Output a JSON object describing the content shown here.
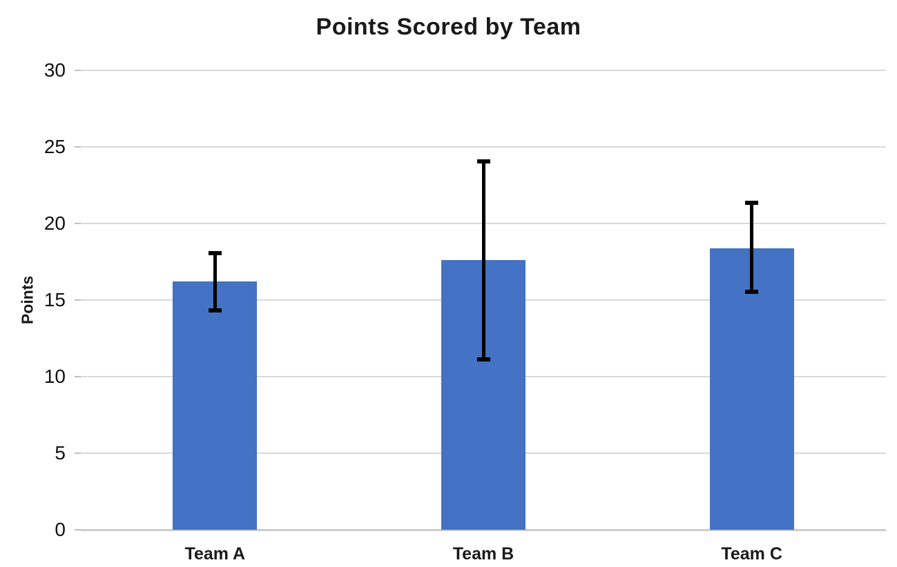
{
  "chart_data": {
    "type": "bar",
    "title": "Points Scored by Team",
    "xlabel": "",
    "ylabel": "Points",
    "categories": [
      "Team A",
      "Team B",
      "Team C"
    ],
    "values": [
      16.2,
      17.6,
      18.4
    ],
    "error_bars": [
      {
        "low": 14.2,
        "high": 18.2
      },
      {
        "low": 11.0,
        "high": 24.2
      },
      {
        "low": 15.4,
        "high": 21.5
      }
    ],
    "ylim": [
      0,
      30
    ],
    "ytick_interval": 5,
    "ytick_labels": [
      "0",
      "5",
      "10",
      "15",
      "20",
      "25",
      "30"
    ],
    "grid": true,
    "legend": "none",
    "bar_color": "#4472c4",
    "error_bar_color": "#000000",
    "gridline_color": "#d9d9d9",
    "axis_line_color": "#cccccc",
    "text_color": "#1a1a1a"
  }
}
